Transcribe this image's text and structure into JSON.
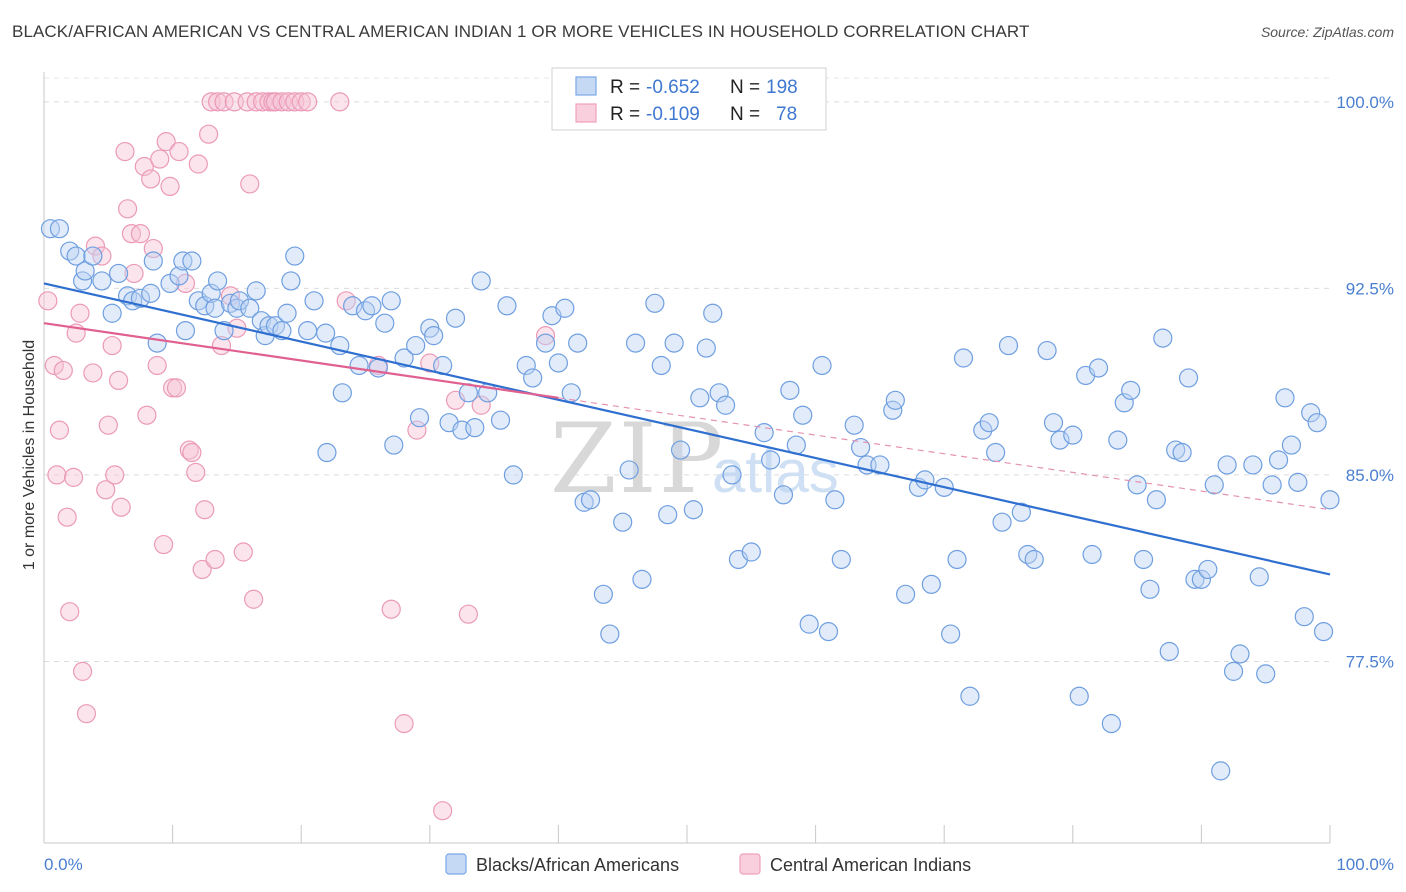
{
  "title": "BLACK/AFRICAN AMERICAN VS CENTRAL AMERICAN INDIAN 1 OR MORE VEHICLES IN HOUSEHOLD CORRELATION CHART",
  "source": "Source: ZipAtlas.com",
  "watermark": {
    "zip": "ZIP",
    "atlas": "atlas"
  },
  "colors": {
    "blue": "#7aa8e6",
    "blue_line": "#2f6fd0",
    "pink": "#f0a0bc",
    "pink_line": "#e06090",
    "tick": "#4a7fd0"
  },
  "legend": {
    "rows": [
      {
        "r_label": "R =",
        "r_value": "-0.652",
        "n_label": "N =",
        "n_value": "198"
      },
      {
        "r_label": "R =",
        "r_value": "-0.109",
        "n_label": "N =",
        "n_value": "78"
      }
    ]
  },
  "bottom_legend": [
    "Blacks/African Americans",
    "Central American Indians"
  ],
  "chart_data": {
    "type": "scatter",
    "title": "BLACK/AFRICAN AMERICAN VS CENTRAL AMERICAN INDIAN 1 OR MORE VEHICLES IN HOUSEHOLD CORRELATION CHART",
    "xlabel": "",
    "ylabel": "1 or more Vehicles in Household",
    "x_tick_labels": [
      "0.0%",
      "100.0%"
    ],
    "y_tick_labels": [
      "77.5%",
      "85.0%",
      "92.5%",
      "100.0%"
    ],
    "y_ticks": [
      77.5,
      85.0,
      92.5,
      100.0
    ],
    "xlim": [
      0,
      100
    ],
    "ylim": [
      70.2,
      101.2
    ],
    "grid": true,
    "legend_position": "top-center",
    "series": [
      {
        "name": "Blacks/African Americans",
        "color": "#7aa8e6",
        "r": -0.652,
        "n": 198,
        "trend": [
          [
            0,
            92.7
          ],
          [
            100,
            81.0
          ]
        ],
        "points": [
          [
            0.5,
            94.9
          ],
          [
            1.2,
            94.9
          ],
          [
            2.0,
            94.0
          ],
          [
            2.5,
            93.8
          ],
          [
            3.0,
            92.8
          ],
          [
            3.2,
            93.2
          ],
          [
            3.8,
            93.8
          ],
          [
            4.5,
            92.8
          ],
          [
            5.3,
            91.5
          ],
          [
            5.8,
            93.1
          ],
          [
            6.5,
            92.2
          ],
          [
            6.9,
            92.0
          ],
          [
            7.5,
            92.1
          ],
          [
            8.3,
            92.3
          ],
          [
            8.5,
            93.6
          ],
          [
            8.8,
            90.3
          ],
          [
            9.8,
            92.7
          ],
          [
            10.5,
            93.0
          ],
          [
            10.8,
            93.6
          ],
          [
            11.0,
            90.8
          ],
          [
            11.5,
            93.6
          ],
          [
            12.0,
            92.0
          ],
          [
            12.5,
            91.8
          ],
          [
            13.0,
            92.3
          ],
          [
            13.3,
            91.7
          ],
          [
            13.5,
            92.8
          ],
          [
            14.0,
            90.8
          ],
          [
            14.5,
            91.9
          ],
          [
            15.0,
            91.7
          ],
          [
            15.2,
            92.0
          ],
          [
            16.0,
            91.7
          ],
          [
            16.5,
            92.4
          ],
          [
            16.9,
            91.2
          ],
          [
            17.2,
            90.6
          ],
          [
            17.5,
            91.0
          ],
          [
            18.0,
            91.0
          ],
          [
            18.5,
            90.8
          ],
          [
            18.9,
            91.5
          ],
          [
            19.2,
            92.8
          ],
          [
            19.5,
            93.8
          ],
          [
            20.5,
            90.8
          ],
          [
            21.0,
            92.0
          ],
          [
            21.9,
            90.7
          ],
          [
            22.0,
            85.9
          ],
          [
            23.0,
            90.2
          ],
          [
            23.2,
            88.3
          ],
          [
            24.0,
            91.8
          ],
          [
            24.5,
            89.4
          ],
          [
            25.0,
            91.6
          ],
          [
            25.5,
            91.8
          ],
          [
            26.0,
            89.3
          ],
          [
            26.5,
            91.1
          ],
          [
            27.0,
            92.0
          ],
          [
            27.2,
            86.2
          ],
          [
            28.0,
            89.7
          ],
          [
            28.9,
            90.2
          ],
          [
            29.2,
            87.3
          ],
          [
            30.0,
            90.9
          ],
          [
            30.3,
            90.6
          ],
          [
            31.0,
            89.4
          ],
          [
            31.5,
            87.1
          ],
          [
            32.0,
            91.3
          ],
          [
            32.5,
            86.8
          ],
          [
            33.0,
            88.3
          ],
          [
            33.5,
            86.9
          ],
          [
            34.0,
            92.8
          ],
          [
            34.5,
            88.3
          ],
          [
            35.5,
            87.2
          ],
          [
            36.0,
            91.8
          ],
          [
            36.5,
            85.0
          ],
          [
            37.5,
            89.4
          ],
          [
            38.0,
            88.9
          ],
          [
            39.0,
            90.3
          ],
          [
            39.5,
            91.4
          ],
          [
            40.0,
            89.5
          ],
          [
            40.5,
            91.7
          ],
          [
            41.0,
            88.3
          ],
          [
            41.5,
            90.3
          ],
          [
            42.0,
            83.9
          ],
          [
            42.5,
            84.0
          ],
          [
            43.5,
            80.2
          ],
          [
            44.0,
            78.6
          ],
          [
            45.0,
            83.1
          ],
          [
            45.5,
            85.2
          ],
          [
            46.0,
            90.3
          ],
          [
            46.5,
            80.8
          ],
          [
            47.5,
            91.9
          ],
          [
            48.0,
            89.4
          ],
          [
            48.5,
            83.4
          ],
          [
            49.0,
            90.3
          ],
          [
            49.5,
            86.0
          ],
          [
            50.5,
            83.6
          ],
          [
            51.0,
            88.1
          ],
          [
            51.5,
            90.1
          ],
          [
            52.0,
            91.5
          ],
          [
            52.5,
            88.3
          ],
          [
            53.0,
            87.8
          ],
          [
            53.5,
            85.0
          ],
          [
            54.0,
            81.6
          ],
          [
            55.0,
            81.9
          ],
          [
            56.0,
            86.7
          ],
          [
            56.5,
            85.6
          ],
          [
            57.5,
            84.2
          ],
          [
            58.0,
            88.4
          ],
          [
            58.5,
            86.2
          ],
          [
            59.0,
            87.4
          ],
          [
            59.5,
            79.0
          ],
          [
            60.5,
            89.4
          ],
          [
            61.0,
            78.7
          ],
          [
            61.5,
            84.0
          ],
          [
            62.0,
            81.6
          ],
          [
            63.0,
            87.0
          ],
          [
            63.5,
            86.1
          ],
          [
            64.0,
            85.4
          ],
          [
            65.0,
            85.4
          ],
          [
            66.0,
            87.6
          ],
          [
            66.2,
            88.0
          ],
          [
            67.0,
            80.2
          ],
          [
            68.0,
            84.5
          ],
          [
            68.5,
            84.8
          ],
          [
            69.0,
            80.6
          ],
          [
            70.0,
            84.5
          ],
          [
            70.5,
            78.6
          ],
          [
            71.0,
            81.6
          ],
          [
            71.5,
            89.7
          ],
          [
            72.0,
            76.1
          ],
          [
            73.0,
            86.8
          ],
          [
            73.5,
            87.1
          ],
          [
            74.0,
            85.9
          ],
          [
            74.5,
            83.1
          ],
          [
            75.0,
            90.2
          ],
          [
            76.0,
            83.5
          ],
          [
            76.5,
            81.8
          ],
          [
            77.0,
            81.6
          ],
          [
            78.0,
            90.0
          ],
          [
            78.5,
            87.1
          ],
          [
            79.0,
            86.4
          ],
          [
            80.0,
            86.6
          ],
          [
            80.5,
            76.1
          ],
          [
            81.0,
            89.0
          ],
          [
            81.5,
            81.8
          ],
          [
            82.0,
            89.3
          ],
          [
            83.0,
            75.0
          ],
          [
            83.5,
            86.4
          ],
          [
            84.0,
            87.9
          ],
          [
            84.5,
            88.4
          ],
          [
            85.0,
            84.6
          ],
          [
            85.5,
            81.6
          ],
          [
            86.0,
            80.4
          ],
          [
            86.5,
            84.0
          ],
          [
            87.0,
            90.5
          ],
          [
            87.5,
            77.9
          ],
          [
            88.0,
            86.0
          ],
          [
            88.5,
            85.9
          ],
          [
            89.0,
            88.9
          ],
          [
            89.5,
            80.8
          ],
          [
            90.0,
            80.8
          ],
          [
            90.5,
            81.2
          ],
          [
            91.0,
            84.6
          ],
          [
            91.5,
            73.1
          ],
          [
            92.0,
            85.4
          ],
          [
            92.5,
            77.1
          ],
          [
            93.0,
            77.8
          ],
          [
            94.0,
            85.4
          ],
          [
            94.5,
            80.9
          ],
          [
            95.0,
            77.0
          ],
          [
            95.5,
            84.6
          ],
          [
            96.0,
            85.6
          ],
          [
            96.5,
            88.1
          ],
          [
            97.0,
            86.2
          ],
          [
            97.5,
            84.7
          ],
          [
            98.0,
            79.3
          ],
          [
            98.5,
            87.5
          ],
          [
            99.0,
            87.1
          ],
          [
            99.5,
            78.7
          ],
          [
            100.0,
            84.0
          ]
        ]
      },
      {
        "name": "Central American Indians",
        "color": "#f0a0bc",
        "r": -0.109,
        "n": 78,
        "trend": [
          [
            0,
            91.1
          ],
          [
            100,
            83.6
          ]
        ],
        "points": [
          [
            0.3,
            92.0
          ],
          [
            0.8,
            89.4
          ],
          [
            1.0,
            85.0
          ],
          [
            1.2,
            86.8
          ],
          [
            1.5,
            89.2
          ],
          [
            1.8,
            83.3
          ],
          [
            2.0,
            79.5
          ],
          [
            2.3,
            84.9
          ],
          [
            2.5,
            90.7
          ],
          [
            2.8,
            91.5
          ],
          [
            3.0,
            77.1
          ],
          [
            3.3,
            75.4
          ],
          [
            3.8,
            89.1
          ],
          [
            4.0,
            94.2
          ],
          [
            4.5,
            93.8
          ],
          [
            4.8,
            84.4
          ],
          [
            5.0,
            87.0
          ],
          [
            5.3,
            90.2
          ],
          [
            5.5,
            85.0
          ],
          [
            5.8,
            88.8
          ],
          [
            6.0,
            83.7
          ],
          [
            6.3,
            98.0
          ],
          [
            6.5,
            95.7
          ],
          [
            6.8,
            94.7
          ],
          [
            7.0,
            93.1
          ],
          [
            7.5,
            94.7
          ],
          [
            7.8,
            97.4
          ],
          [
            8.0,
            87.4
          ],
          [
            8.3,
            96.9
          ],
          [
            8.5,
            94.1
          ],
          [
            8.8,
            89.4
          ],
          [
            9.0,
            97.7
          ],
          [
            9.3,
            82.2
          ],
          [
            9.5,
            98.4
          ],
          [
            9.8,
            96.6
          ],
          [
            10.0,
            88.5
          ],
          [
            10.3,
            88.5
          ],
          [
            10.5,
            98.0
          ],
          [
            11.0,
            92.7
          ],
          [
            11.3,
            86.0
          ],
          [
            11.5,
            85.9
          ],
          [
            11.8,
            85.1
          ],
          [
            12.0,
            97.5
          ],
          [
            12.3,
            81.2
          ],
          [
            12.5,
            83.6
          ],
          [
            12.8,
            98.7
          ],
          [
            13.0,
            100.0
          ],
          [
            13.3,
            81.6
          ],
          [
            13.5,
            100.0
          ],
          [
            13.8,
            90.2
          ],
          [
            14.0,
            100.0
          ],
          [
            14.5,
            92.2
          ],
          [
            14.8,
            100.0
          ],
          [
            15.0,
            90.9
          ],
          [
            15.5,
            81.9
          ],
          [
            15.8,
            100.0
          ],
          [
            16.0,
            96.7
          ],
          [
            16.3,
            80.0
          ],
          [
            16.5,
            100.0
          ],
          [
            17.0,
            100.0
          ],
          [
            17.5,
            100.0
          ],
          [
            17.8,
            100.0
          ],
          [
            18.0,
            100.0
          ],
          [
            18.5,
            100.0
          ],
          [
            19.0,
            100.0
          ],
          [
            19.5,
            100.0
          ],
          [
            20.0,
            100.0
          ],
          [
            20.5,
            100.0
          ],
          [
            23.0,
            100.0
          ],
          [
            23.5,
            92.0
          ],
          [
            26.0,
            89.4
          ],
          [
            27.0,
            79.6
          ],
          [
            28.0,
            75.0
          ],
          [
            29.0,
            86.8
          ],
          [
            30.0,
            89.5
          ],
          [
            31.0,
            71.5
          ],
          [
            32.0,
            88.0
          ],
          [
            33.0,
            79.4
          ],
          [
            34.0,
            87.8
          ],
          [
            39.0,
            90.6
          ]
        ]
      }
    ]
  }
}
